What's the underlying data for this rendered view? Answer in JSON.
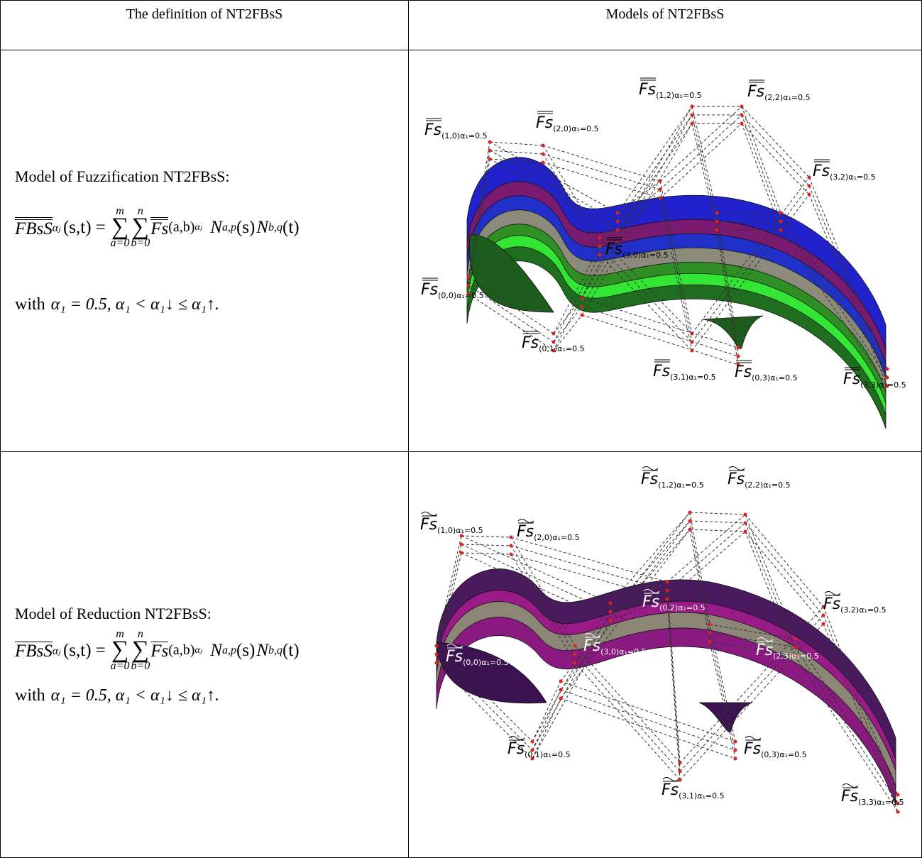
{
  "table": {
    "header": [
      "The definition of NT2FBsS",
      "Models of NT2FBsS"
    ],
    "rows": [
      {
        "title": "Model of Fuzzification NT2FBsS:",
        "formula": {
          "lhs": "FBsS",
          "lhs_sub": "αⱼ",
          "lhs_args": "(s,t)",
          "equals": "=",
          "sum_symbol": "∑",
          "sum1_top": "m",
          "sum1_bottom": "a=0",
          "sum2_top": "n",
          "sum2_bottom": "b=0",
          "term": "Fs",
          "term_sub": "(a,b)",
          "term_sub2": "αⱼ",
          "basis1": "N",
          "basis1_sub": "a,p",
          "basis1_arg": "(s)",
          "basis2": "N",
          "basis2_sub": "b,q",
          "basis2_arg": "(t)"
        },
        "condition_prefix": "with",
        "condition": "α₁ = 0.5,  α₁ < α₁↓ ≤ α₁↑.",
        "model": {
          "labels": [
            {
              "name": "Fs",
              "subscript": "(1,0)α₁=0.5"
            },
            {
              "name": "Fs",
              "subscript": "(2,0)α₁=0.5"
            },
            {
              "name": "Fs",
              "subscript": "(1,2)α₁=0.5"
            },
            {
              "name": "Fs",
              "subscript": "(2,2)α₁=0.5"
            },
            {
              "name": "Fs",
              "subscript": "(3,2)α₁=0.5"
            },
            {
              "name": "Fs",
              "subscript": "(3,0)α₁=0.5"
            },
            {
              "name": "Fs",
              "subscript": "(0,0)α₁=0.5"
            },
            {
              "name": "Fs",
              "subscript": "(0,1)α₁=0.5"
            },
            {
              "name": "Fs",
              "subscript": "(3,1)α₁=0.5"
            },
            {
              "name": "Fs",
              "subscript": "(0,3)α₁=0.5"
            },
            {
              "name": "Fs",
              "subscript": "(3,3)α₁=0.5"
            }
          ]
        }
      },
      {
        "title": "Model of Reduction NT2FBsS:",
        "formula": {
          "lhs": "FBsS",
          "lhs_sub": "αⱼ",
          "lhs_args": "(s,t)",
          "equals": "=",
          "sum_symbol": "∑",
          "sum1_top": "m",
          "sum1_bottom": "a=0",
          "sum2_top": "n",
          "sum2_bottom": "b=0",
          "term": "Fs",
          "term_sub": "(a,b)",
          "term_sub2": "αⱼ",
          "basis1": "N",
          "basis1_sub": "a,p",
          "basis1_arg": "(s)",
          "basis2": "N",
          "basis2_sub": "b,q",
          "basis2_arg": "(t)"
        },
        "condition_prefix": "with",
        "condition": "α₁ = 0.5,  α₁ < α₁↓ ≤ α₁↑.",
        "model": {
          "labels": [
            {
              "name": "Fs",
              "subscript": "(1,2)α₁=0.5"
            },
            {
              "name": "Fs",
              "subscript": "(2,2)α₁=0.5"
            },
            {
              "name": "Fs",
              "subscript": "(1,0)α₁=0.5"
            },
            {
              "name": "Fs",
              "subscript": "(2,0)α₁=0.5"
            },
            {
              "name": "Fs",
              "subscript": "(0,2)α₁=0.5"
            },
            {
              "name": "Fs",
              "subscript": "(3,2)α₁=0.5"
            },
            {
              "name": "Fs",
              "subscript": "(3,0)α₁=0.5"
            },
            {
              "name": "Fs",
              "subscript": "(2,3)α₁=0.5"
            },
            {
              "name": "Fs",
              "subscript": "(0,0)α₁=0.5"
            },
            {
              "name": "Fs",
              "subscript": "(0,1)α₁=0.5"
            },
            {
              "name": "Fs",
              "subscript": "(0,3)α₁=0.5"
            },
            {
              "name": "Fs",
              "subscript": "(3,1)α₁=0.5"
            },
            {
              "name": "Fs",
              "subscript": "(3,3)α₁=0.5"
            }
          ]
        }
      }
    ]
  }
}
